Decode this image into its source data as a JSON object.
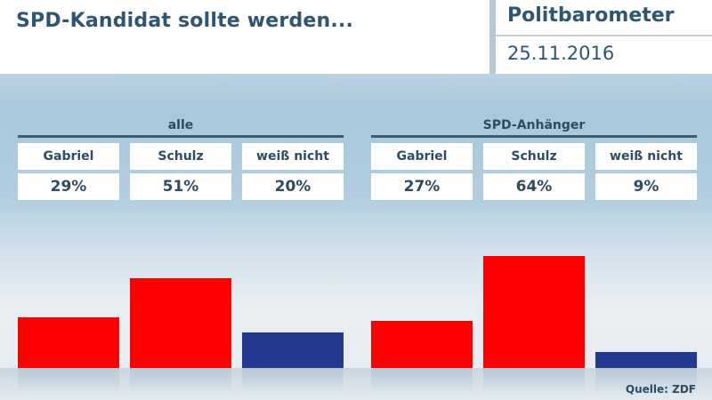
{
  "header": {
    "headline": "SPD-Kandidat sollte werden...",
    "brand": "Politbarometer",
    "date": "25.11.2016"
  },
  "colors": {
    "spd_red": "#ff0000",
    "neutral_blue": "#23388f",
    "text_dark": "#2f5670"
  },
  "source": "Quelle: ZDF",
  "chart_data": [
    {
      "type": "bar",
      "title": "alle",
      "categories": [
        "Gabriel",
        "Schulz",
        "weiß nicht"
      ],
      "values": [
        29,
        51,
        20
      ],
      "value_labels": [
        "29%",
        "51%",
        "20%"
      ],
      "bar_colors": [
        "#ff0000",
        "#ff0000",
        "#23388f"
      ],
      "unit": "%",
      "ylim": [
        0,
        70
      ]
    },
    {
      "type": "bar",
      "title": "SPD-Anhänger",
      "categories": [
        "Gabriel",
        "Schulz",
        "weiß nicht"
      ],
      "values": [
        27,
        64,
        9
      ],
      "value_labels": [
        "27%",
        "64%",
        "9%"
      ],
      "bar_colors": [
        "#ff0000",
        "#ff0000",
        "#23388f"
      ],
      "unit": "%",
      "ylim": [
        0,
        70
      ]
    }
  ]
}
